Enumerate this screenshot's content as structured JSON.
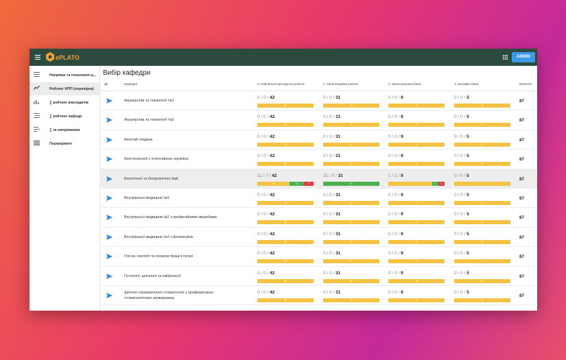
{
  "header": {
    "logo": "ePLATO",
    "button": "ADMIN"
  },
  "sidebar": {
    "items": [
      "Напрями та показники д...",
      "Рейтинг НПП (перевірка)",
      "∑ рейтинг викладачів",
      "∑ рейтинг кафедр",
      "∑ за напрямками",
      "Перевіряючі"
    ],
    "active": 1
  },
  "page_title": "Вибір кафедри",
  "colors": {
    "yellow": "#f4c344",
    "green": "#4caf50",
    "red": "#e23b3b"
  },
  "table": {
    "columns": [
      "Дії",
      "Кафедра",
      "1. Навчально-методична робота",
      "2. Організаційна робота",
      "3. Заохочувальні бали",
      "4. Штрафні бали",
      "ВСЬОГО"
    ],
    "highlighted_row": 4,
    "rows": [
      {
        "name": "Акушерства та гінекології №1",
        "cells": [
          {
            "counts": "0 / 0 /",
            "max": 42,
            "segments": [
              {
                "value": 42,
                "color": "yellow"
              }
            ]
          },
          {
            "counts": "0 / 0 /",
            "max": 31,
            "segments": [
              {
                "value": 31,
                "color": "yellow"
              }
            ]
          },
          {
            "counts": "0 / 0 /",
            "max": 9,
            "segments": [
              {
                "value": 9,
                "color": "yellow"
              }
            ]
          },
          {
            "counts": "0 / 0 /",
            "max": 5,
            "segments": [
              {
                "value": 5,
                "color": "yellow"
              }
            ]
          }
        ],
        "total": 87
      },
      {
        "name": "Акушерства та гінекології №2",
        "cells": [
          {
            "counts": "0 / 0 /",
            "max": 42,
            "segments": [
              {
                "value": 42,
                "color": "yellow"
              }
            ]
          },
          {
            "counts": "0 / 0 /",
            "max": 31,
            "segments": [
              {
                "value": 31,
                "color": "yellow"
              }
            ]
          },
          {
            "counts": "0 / 0 /",
            "max": 9,
            "segments": [
              {
                "value": 9,
                "color": "yellow"
              }
            ]
          },
          {
            "counts": "0 / 0 /",
            "max": 5,
            "segments": [
              {
                "value": 5,
                "color": "yellow"
              }
            ]
          }
        ],
        "total": 87
      },
      {
        "name": "Анатомії людини",
        "cells": [
          {
            "counts": "0 / 0 /",
            "max": 42,
            "segments": [
              {
                "value": 42,
                "color": "yellow"
              }
            ]
          },
          {
            "counts": "0 / 0 /",
            "max": 31,
            "segments": [
              {
                "value": 31,
                "color": "yellow"
              }
            ]
          },
          {
            "counts": "0 / 0 /",
            "max": 9,
            "segments": [
              {
                "value": 9,
                "color": "yellow"
              }
            ]
          },
          {
            "counts": "0 / 0 /",
            "max": 5,
            "segments": [
              {
                "value": 5,
                "color": "yellow"
              }
            ]
          }
        ],
        "total": 87
      },
      {
        "name": "Анестезіології з інтенсивною терапією",
        "cells": [
          {
            "counts": "0 / 0 /",
            "max": 42,
            "segments": [
              {
                "value": 42,
                "color": "yellow"
              }
            ]
          },
          {
            "counts": "0 / 0 /",
            "max": 31,
            "segments": [
              {
                "value": 31,
                "color": "yellow"
              }
            ]
          },
          {
            "counts": "0 / 0 /",
            "max": 9,
            "segments": [
              {
                "value": 9,
                "color": "yellow"
              }
            ]
          },
          {
            "counts": "0 / 0 /",
            "max": 5,
            "segments": [
              {
                "value": 5,
                "color": "yellow"
              }
            ]
          }
        ],
        "total": 87
      },
      {
        "name": "Біологічної та біоорганічної хімії",
        "cells": [
          {
            "counts": "11 / 7 /",
            "max": 42,
            "segments": [
              {
                "value": 24,
                "color": "yellow"
              },
              {
                "value": 11,
                "color": "green"
              },
              {
                "value": 7,
                "color": "red"
              }
            ]
          },
          {
            "counts": "31 / 0 /",
            "max": 31,
            "segments": [
              {
                "value": 31,
                "color": "green"
              }
            ]
          },
          {
            "counts": "1 / 1 /",
            "max": 9,
            "segments": [
              {
                "value": 7,
                "color": "yellow"
              },
              {
                "value": 1,
                "color": "green"
              },
              {
                "value": 1,
                "color": "red"
              }
            ]
          },
          {
            "counts": "0 / 0 /",
            "max": 5,
            "segments": [
              {
                "value": 5,
                "color": "yellow"
              }
            ]
          }
        ],
        "total": 87
      },
      {
        "name": "Внутрішньої медицини №1",
        "cells": [
          {
            "counts": "0 / 0 /",
            "max": 42,
            "segments": [
              {
                "value": 42,
                "color": "yellow"
              }
            ]
          },
          {
            "counts": "0 / 0 /",
            "max": 31,
            "segments": [
              {
                "value": 31,
                "color": "yellow"
              }
            ]
          },
          {
            "counts": "0 / 0 /",
            "max": 9,
            "segments": [
              {
                "value": 9,
                "color": "yellow"
              }
            ]
          },
          {
            "counts": "0 / 0 /",
            "max": 5,
            "segments": [
              {
                "value": 5,
                "color": "yellow"
              }
            ]
          }
        ],
        "total": 87
      },
      {
        "name": "Внутрішньої медицини №2 з професійними хворобами",
        "cells": [
          {
            "counts": "0 / 0 /",
            "max": 42,
            "segments": [
              {
                "value": 42,
                "color": "yellow"
              }
            ]
          },
          {
            "counts": "0 / 0 /",
            "max": 31,
            "segments": [
              {
                "value": 31,
                "color": "yellow"
              }
            ]
          },
          {
            "counts": "0 / 0 /",
            "max": 9,
            "segments": [
              {
                "value": 9,
                "color": "yellow"
              }
            ]
          },
          {
            "counts": "0 / 0 /",
            "max": 5,
            "segments": [
              {
                "value": 5,
                "color": "yellow"
              }
            ]
          }
        ],
        "total": 87
      },
      {
        "name": "Внутрішньої медицини №3 з фтизіатрією",
        "cells": [
          {
            "counts": "0 / 0 /",
            "max": 42,
            "segments": [
              {
                "value": 42,
                "color": "yellow"
              }
            ]
          },
          {
            "counts": "0 / 0 /",
            "max": 31,
            "segments": [
              {
                "value": 31,
                "color": "yellow"
              }
            ]
          },
          {
            "counts": "0 / 0 /",
            "max": 9,
            "segments": [
              {
                "value": 9,
                "color": "yellow"
              }
            ]
          },
          {
            "counts": "0 / 0 /",
            "max": 5,
            "segments": [
              {
                "value": 5,
                "color": "yellow"
              }
            ]
          }
        ],
        "total": 87
      },
      {
        "name": "Гігієни, екології та охорони праці в галузі",
        "cells": [
          {
            "counts": "0 / 0 /",
            "max": 42,
            "segments": [
              {
                "value": 42,
                "color": "yellow"
              }
            ]
          },
          {
            "counts": "0 / 0 /",
            "max": 31,
            "segments": [
              {
                "value": 31,
                "color": "yellow"
              }
            ]
          },
          {
            "counts": "0 / 0 /",
            "max": 9,
            "segments": [
              {
                "value": 9,
                "color": "yellow"
              }
            ]
          },
          {
            "counts": "0 / 0 /",
            "max": 5,
            "segments": [
              {
                "value": 5,
                "color": "yellow"
              }
            ]
          }
        ],
        "total": 87
      },
      {
        "name": "Гістології, цитології та ембріології",
        "cells": [
          {
            "counts": "0 / 0 /",
            "max": 42,
            "segments": [
              {
                "value": 42,
                "color": "yellow"
              }
            ]
          },
          {
            "counts": "0 / 0 /",
            "max": 31,
            "segments": [
              {
                "value": 31,
                "color": "yellow"
              }
            ]
          },
          {
            "counts": "0 / 0 /",
            "max": 9,
            "segments": [
              {
                "value": 9,
                "color": "yellow"
              }
            ]
          },
          {
            "counts": "0 / 0 /",
            "max": 5,
            "segments": [
              {
                "value": 5,
                "color": "yellow"
              }
            ]
          }
        ],
        "total": 87
      },
      {
        "name": "Дитячої терапевтичної стоматології з профілактикою стоматологічних захворювань",
        "cells": [
          {
            "counts": "0 / 0 /",
            "max": 42,
            "segments": [
              {
                "value": 42,
                "color": "yellow"
              }
            ]
          },
          {
            "counts": "0 / 0 /",
            "max": 31,
            "segments": [
              {
                "value": 31,
                "color": "yellow"
              }
            ]
          },
          {
            "counts": "0 / 0 /",
            "max": 9,
            "segments": [
              {
                "value": 9,
                "color": "yellow"
              }
            ]
          },
          {
            "counts": "0 / 0 /",
            "max": 5,
            "segments": [
              {
                "value": 5,
                "color": "yellow"
              }
            ]
          }
        ],
        "total": 87
      }
    ]
  }
}
